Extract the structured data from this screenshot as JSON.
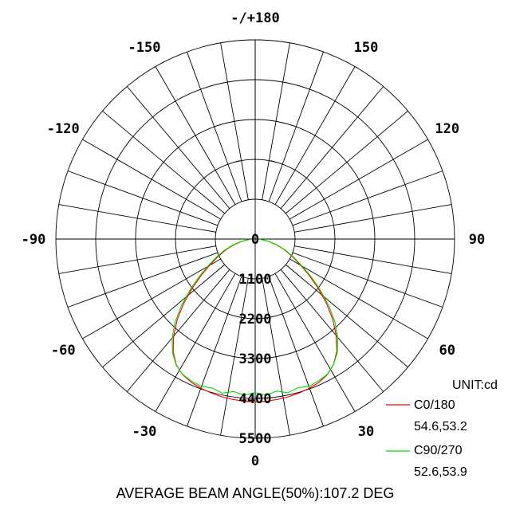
{
  "chart_data": {
    "type": "polar",
    "unit_label": "UNIT:cd",
    "caption": "AVERAGE BEAM ANGLE(50%):107.2 DEG",
    "radial_max": 5500,
    "radial_ticks": [
      "0",
      "1100",
      "2200",
      "3300",
      "4400",
      "5500"
    ],
    "radial_tick_values": [
      0,
      1100,
      2200,
      3300,
      4400,
      5500
    ],
    "angle_labels": [
      {
        "text": "-/+180",
        "angle": 180
      },
      {
        "text": "150",
        "angle": 150
      },
      {
        "text": "120",
        "angle": 120
      },
      {
        "text": "90",
        "angle": 90
      },
      {
        "text": "60",
        "angle": 60
      },
      {
        "text": "30",
        "angle": 30
      },
      {
        "text": "0",
        "angle": 0
      },
      {
        "text": "-30",
        "angle": -30
      },
      {
        "text": "-60",
        "angle": -60
      },
      {
        "text": "-90",
        "angle": -90
      },
      {
        "text": "-120",
        "angle": -120
      },
      {
        "text": "-150",
        "angle": -150
      }
    ],
    "series": [
      {
        "name": "C0/180",
        "beam": "54.6,53.2",
        "color": "#ff0000",
        "points": [
          [
            -90,
            0
          ],
          [
            -85,
            180
          ],
          [
            -80,
            380
          ],
          [
            -75,
            600
          ],
          [
            -70,
            850
          ],
          [
            -65,
            1120
          ],
          [
            -60,
            1450
          ],
          [
            -56,
            1800
          ],
          [
            -52,
            2200
          ],
          [
            -48,
            2650
          ],
          [
            -44,
            3100
          ],
          [
            -40,
            3500
          ],
          [
            -36,
            3850
          ],
          [
            -32,
            4100
          ],
          [
            -28,
            4250
          ],
          [
            -24,
            4330
          ],
          [
            -20,
            4380
          ],
          [
            -16,
            4420
          ],
          [
            -12,
            4450
          ],
          [
            -8,
            4470
          ],
          [
            -4,
            4490
          ],
          [
            0,
            4500
          ],
          [
            4,
            4490
          ],
          [
            8,
            4470
          ],
          [
            12,
            4450
          ],
          [
            16,
            4420
          ],
          [
            20,
            4380
          ],
          [
            24,
            4330
          ],
          [
            28,
            4240
          ],
          [
            32,
            4080
          ],
          [
            36,
            3830
          ],
          [
            40,
            3480
          ],
          [
            44,
            3080
          ],
          [
            48,
            2640
          ],
          [
            52,
            2200
          ],
          [
            56,
            1800
          ],
          [
            60,
            1450
          ],
          [
            65,
            1120
          ],
          [
            70,
            850
          ],
          [
            75,
            600
          ],
          [
            80,
            380
          ],
          [
            85,
            180
          ],
          [
            90,
            0
          ]
        ]
      },
      {
        "name": "C90/270",
        "beam": "52.6,53.9",
        "color": "#00dd00",
        "points": [
          [
            -90,
            0
          ],
          [
            -85,
            190
          ],
          [
            -80,
            400
          ],
          [
            -75,
            640
          ],
          [
            -70,
            900
          ],
          [
            -65,
            1180
          ],
          [
            -60,
            1520
          ],
          [
            -56,
            1880
          ],
          [
            -52,
            2280
          ],
          [
            -48,
            2730
          ],
          [
            -44,
            3180
          ],
          [
            -40,
            3560
          ],
          [
            -36,
            3880
          ],
          [
            -32,
            4110
          ],
          [
            -28,
            4240
          ],
          [
            -24,
            4300
          ],
          [
            -20,
            4330
          ],
          [
            -16,
            4280
          ],
          [
            -12,
            4350
          ],
          [
            -8,
            4250
          ],
          [
            -4,
            4320
          ],
          [
            0,
            4240
          ],
          [
            4,
            4320
          ],
          [
            8,
            4240
          ],
          [
            12,
            4340
          ],
          [
            16,
            4270
          ],
          [
            20,
            4330
          ],
          [
            24,
            4290
          ],
          [
            28,
            4230
          ],
          [
            32,
            4080
          ],
          [
            36,
            3860
          ],
          [
            40,
            3540
          ],
          [
            44,
            3160
          ],
          [
            48,
            2720
          ],
          [
            52,
            2270
          ],
          [
            56,
            1870
          ],
          [
            60,
            1500
          ],
          [
            65,
            1160
          ],
          [
            70,
            880
          ],
          [
            75,
            620
          ],
          [
            80,
            390
          ],
          [
            85,
            185
          ],
          [
            90,
            0
          ]
        ]
      }
    ]
  }
}
